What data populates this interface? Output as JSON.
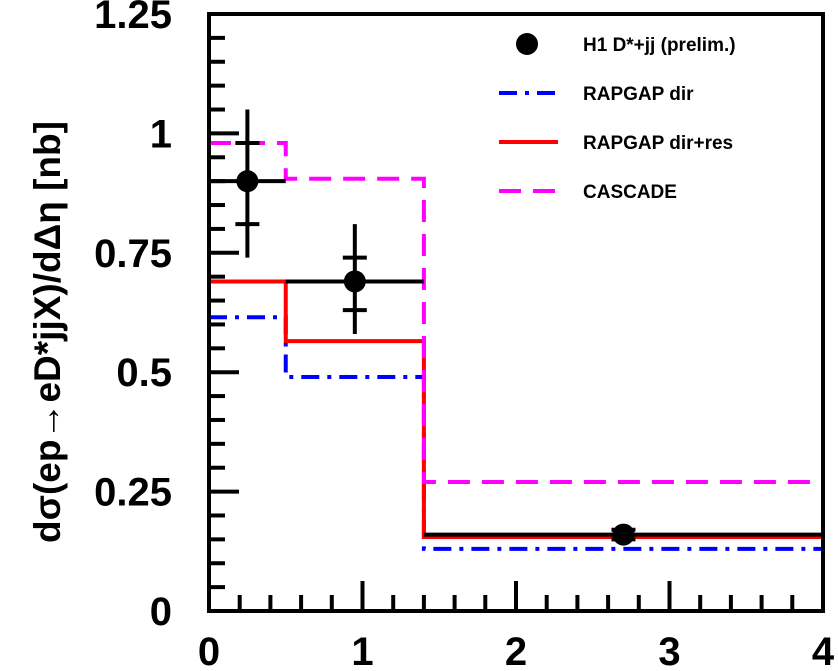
{
  "chart_data": {
    "type": "step-histogram",
    "title": "",
    "xlabel": "",
    "ylabel": "dσ(ep→eD*jjX)/dΔη [nb]",
    "xlim": [
      0,
      4
    ],
    "ylim": [
      0,
      1.25
    ],
    "x_ticks": [
      0,
      1,
      2,
      3,
      4
    ],
    "x_tick_labels": [
      "0",
      "1",
      "2",
      "3",
      "4"
    ],
    "y_ticks": [
      0,
      0.25,
      0.5,
      0.75,
      1,
      1.25
    ],
    "y_tick_labels": [
      "0",
      "0.25",
      "0.5",
      "0.75",
      "1",
      "1.25"
    ],
    "bin_edges": [
      0,
      0.5,
      1.4,
      4.0
    ],
    "data_points": {
      "name": "H1 D*+jj (prelim.)",
      "color": "#000000",
      "x": [
        0.25,
        0.95,
        2.7
      ],
      "y": [
        0.9,
        0.69,
        0.16
      ],
      "x_lo": [
        0.0,
        0.5,
        1.4
      ],
      "x_hi": [
        0.5,
        1.4,
        4.0
      ],
      "stat_lo": [
        0.81,
        0.63,
        0.15
      ],
      "stat_hi": [
        0.98,
        0.74,
        0.17
      ],
      "tot_lo": [
        0.74,
        0.58,
        0.145
      ],
      "tot_hi": [
        1.05,
        0.81,
        0.175
      ]
    },
    "series": [
      {
        "name": "RAPGAP dir",
        "color": "#0000ff",
        "style": "dashdot",
        "values": [
          0.615,
          0.49,
          0.13
        ]
      },
      {
        "name": "RAPGAP dir+res",
        "color": "#ff0000",
        "style": "solid",
        "values": [
          0.69,
          0.565,
          0.155
        ]
      },
      {
        "name": "CASCADE",
        "color": "#ff00ff",
        "style": "dashed",
        "values": [
          0.98,
          0.905,
          0.27
        ]
      }
    ],
    "legend_position": "top-right",
    "grid": false
  }
}
